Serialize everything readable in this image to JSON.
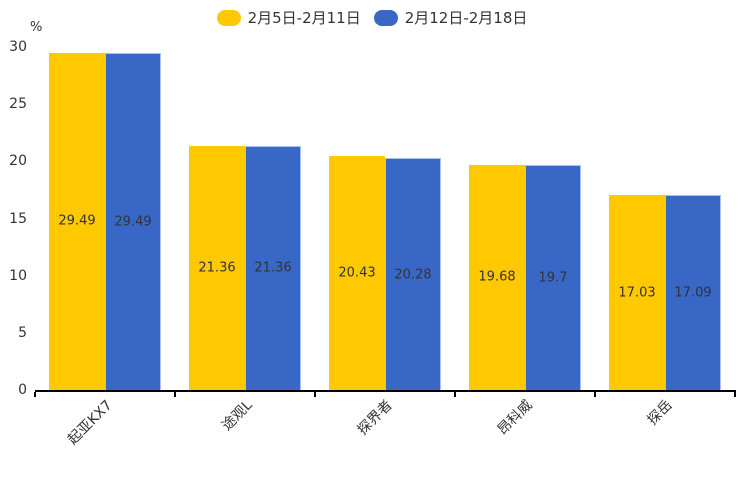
{
  "chart_data": {
    "type": "bar",
    "title": "",
    "categories": [
      "起亚KX7",
      "途观L",
      "探界者",
      "昂科威",
      "探岳"
    ],
    "series": [
      {
        "name": "2月5日-2月11日",
        "color": "#FFC902",
        "values": [
          29.49,
          21.36,
          20.43,
          19.68,
          17.03
        ]
      },
      {
        "name": "2月12日-2月18日",
        "color": "#3967C6",
        "values": [
          29.49,
          21.36,
          20.28,
          19.7,
          17.09
        ]
      }
    ],
    "xlabel": "",
    "ylabel": "%",
    "ylim": [
      0,
      30
    ],
    "yticks": [
      0,
      5,
      10,
      15,
      20,
      25,
      30
    ],
    "grid": false,
    "legend_position": "top-center",
    "value_labels": "inside-middle",
    "x_tick_label_rotation_deg": 45
  },
  "styles": {
    "background": "#ffffff",
    "text_color": "#333333",
    "axis_color": "#000000",
    "series1_color": "#FFC902",
    "series2_color": "#3967C6",
    "series2_border_color": "#A9C3EF"
  }
}
